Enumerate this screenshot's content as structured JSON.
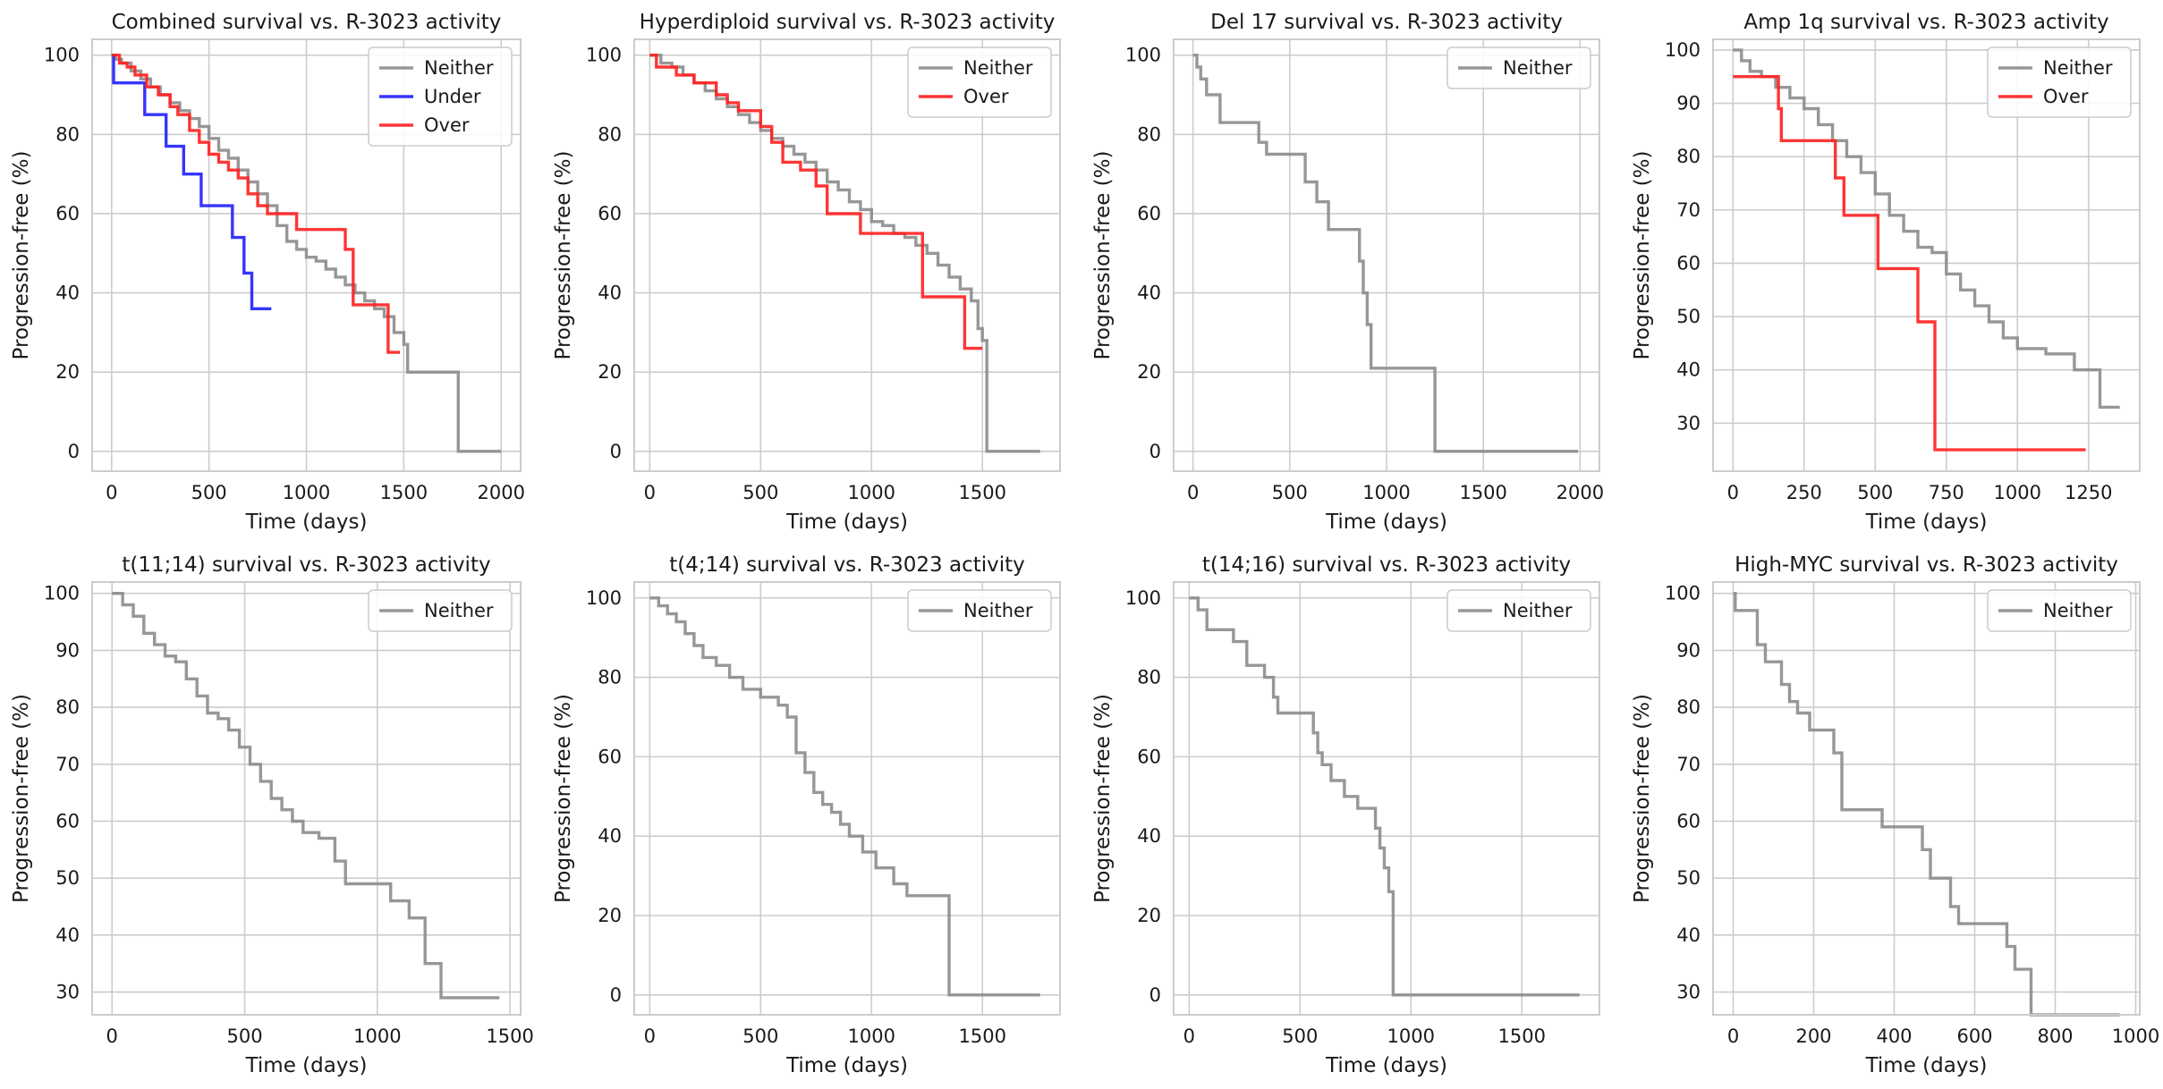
{
  "figure": {
    "facecolor": "#ffffff",
    "ylabel": "Progression-free (%)",
    "xlabel": "Time (days)"
  },
  "colors": {
    "Neither": "#8c8c8c",
    "Under": "#1f1fff",
    "Over": "#ff1f1f"
  },
  "chart_data": [
    {
      "type": "line",
      "title": "Combined survival vs. R-3023 activity",
      "xlabel": "Time (days)",
      "ylabel": "Progression-free (%)",
      "xlim": [
        -100,
        2100
      ],
      "ylim": [
        -5,
        104
      ],
      "xticks": [
        0,
        500,
        1000,
        1500,
        2000
      ],
      "xticklabels": [
        "0",
        "500",
        "1000",
        "1500",
        "2000"
      ],
      "yticks": [
        0,
        20,
        40,
        60,
        80,
        100
      ],
      "yticklabels": [
        "0",
        "20",
        "40",
        "60",
        "80",
        "100"
      ],
      "legend": [
        "Neither",
        "Under",
        "Over"
      ],
      "series": [
        {
          "name": "Neither",
          "x": [
            0,
            20,
            50,
            100,
            150,
            200,
            250,
            300,
            350,
            400,
            450,
            500,
            550,
            600,
            650,
            700,
            750,
            800,
            850,
            900,
            950,
            1000,
            1050,
            1100,
            1150,
            1200,
            1250,
            1300,
            1350,
            1400,
            1450,
            1500,
            1520,
            1760,
            1780,
            2000
          ],
          "y": [
            100,
            99,
            98,
            96,
            94,
            92,
            90,
            88,
            86,
            84,
            82,
            79,
            76,
            74,
            71,
            68,
            65,
            62,
            57,
            53,
            51,
            49,
            48,
            46,
            44,
            42,
            40,
            38,
            36,
            34,
            30,
            27,
            20,
            20,
            0,
            0
          ]
        },
        {
          "name": "Under",
          "x": [
            0,
            10,
            170,
            280,
            370,
            460,
            620,
            680,
            720,
            820
          ],
          "y": [
            100,
            93,
            85,
            77,
            70,
            62,
            54,
            45,
            36,
            36
          ]
        },
        {
          "name": "Over",
          "x": [
            0,
            40,
            80,
            120,
            180,
            240,
            300,
            340,
            400,
            450,
            500,
            550,
            600,
            650,
            700,
            750,
            800,
            950,
            1200,
            1240,
            1420,
            1480
          ],
          "y": [
            100,
            98,
            97,
            95,
            92,
            90,
            87,
            85,
            81,
            78,
            75,
            73,
            71,
            69,
            65,
            62,
            60,
            56,
            51,
            37,
            25,
            25
          ]
        }
      ]
    },
    {
      "type": "line",
      "title": "Hyperdiploid survival vs. R-3023 activity",
      "xlabel": "Time (days)",
      "ylabel": "Progression-free (%)",
      "xlim": [
        -70,
        1850
      ],
      "ylim": [
        -5,
        104
      ],
      "xticks": [
        0,
        500,
        1000,
        1500
      ],
      "xticklabels": [
        "0",
        "500",
        "1000",
        "1500"
      ],
      "yticks": [
        0,
        20,
        40,
        60,
        80,
        100
      ],
      "yticklabels": [
        "0",
        "20",
        "40",
        "60",
        "80",
        "100"
      ],
      "legend": [
        "Neither",
        "Over"
      ],
      "series": [
        {
          "name": "Neither",
          "x": [
            0,
            50,
            100,
            150,
            200,
            250,
            300,
            350,
            400,
            450,
            500,
            550,
            600,
            650,
            700,
            750,
            800,
            850,
            900,
            950,
            1000,
            1050,
            1100,
            1150,
            1200,
            1250,
            1300,
            1350,
            1400,
            1450,
            1480,
            1500,
            1520,
            1760
          ],
          "y": [
            100,
            98,
            97,
            95,
            93,
            91,
            89,
            87,
            85,
            83,
            81,
            79,
            77,
            75,
            73,
            71,
            68,
            66,
            63,
            61,
            58,
            57,
            55,
            54,
            52,
            50,
            47,
            44,
            41,
            38,
            31,
            28,
            0,
            0
          ]
        },
        {
          "name": "Over",
          "x": [
            0,
            30,
            120,
            200,
            300,
            350,
            400,
            500,
            550,
            600,
            680,
            750,
            800,
            950,
            1230,
            1420,
            1500
          ],
          "y": [
            100,
            97,
            95,
            93,
            90,
            88,
            86,
            82,
            78,
            73,
            71,
            67,
            60,
            55,
            39,
            26,
            26
          ]
        }
      ]
    },
    {
      "type": "line",
      "title": "Del 17 survival vs. R-3023 activity",
      "xlabel": "Time (days)",
      "ylabel": "Progression-free (%)",
      "xlim": [
        -100,
        2100
      ],
      "ylim": [
        -5,
        104
      ],
      "xticks": [
        0,
        500,
        1000,
        1500,
        2000
      ],
      "xticklabels": [
        "0",
        "500",
        "1000",
        "1500",
        "2000"
      ],
      "yticks": [
        0,
        20,
        40,
        60,
        80,
        100
      ],
      "yticklabels": [
        "0",
        "20",
        "40",
        "60",
        "80",
        "100"
      ],
      "legend": [
        "Neither"
      ],
      "series": [
        {
          "name": "Neither",
          "x": [
            0,
            20,
            40,
            70,
            140,
            340,
            380,
            580,
            640,
            700,
            860,
            880,
            900,
            920,
            1250,
            1990
          ],
          "y": [
            100,
            97,
            94,
            90,
            83,
            78,
            75,
            68,
            63,
            56,
            48,
            40,
            32,
            21,
            0,
            0
          ]
        }
      ]
    },
    {
      "type": "line",
      "title": "Amp 1q survival vs. R-3023 activity",
      "xlabel": "Time (days)",
      "ylabel": "Progression-free (%)",
      "xlim": [
        -70,
        1430
      ],
      "ylim": [
        21,
        102
      ],
      "xticks": [
        0,
        250,
        500,
        750,
        1000,
        1250
      ],
      "xticklabels": [
        "0",
        "250",
        "500",
        "750",
        "1000",
        "1250"
      ],
      "yticks": [
        30,
        40,
        50,
        60,
        70,
        80,
        90,
        100
      ],
      "yticklabels": [
        "30",
        "40",
        "50",
        "60",
        "70",
        "80",
        "90",
        "100"
      ],
      "legend": [
        "Neither",
        "Over"
      ],
      "series": [
        {
          "name": "Neither",
          "x": [
            0,
            30,
            60,
            100,
            150,
            200,
            250,
            300,
            350,
            400,
            450,
            500,
            550,
            600,
            650,
            700,
            750,
            800,
            850,
            900,
            950,
            1000,
            1100,
            1200,
            1250,
            1290,
            1360
          ],
          "y": [
            100,
            98,
            96,
            95,
            93,
            91,
            89,
            86,
            83,
            80,
            77,
            73,
            69,
            66,
            63,
            62,
            58,
            55,
            52,
            49,
            46,
            44,
            43,
            40,
            40,
            33,
            33
          ]
        },
        {
          "name": "Over",
          "x": [
            0,
            160,
            170,
            360,
            390,
            510,
            650,
            710,
            1240
          ],
          "y": [
            95,
            89,
            83,
            76,
            69,
            59,
            49,
            25,
            25
          ]
        }
      ]
    },
    {
      "type": "line",
      "title": "t(11;14) survival vs. R-3023 activity",
      "xlabel": "Time (days)",
      "ylabel": "Progression-free (%)",
      "xlim": [
        -75,
        1540
      ],
      "ylim": [
        26,
        102
      ],
      "xticks": [
        0,
        500,
        1000,
        1500
      ],
      "xticklabels": [
        "0",
        "500",
        "1000",
        "1500"
      ],
      "yticks": [
        30,
        40,
        50,
        60,
        70,
        80,
        90,
        100
      ],
      "yticklabels": [
        "30",
        "40",
        "50",
        "60",
        "70",
        "80",
        "90",
        "100"
      ],
      "legend": [
        "Neither"
      ],
      "series": [
        {
          "name": "Neither",
          "x": [
            0,
            40,
            80,
            120,
            160,
            200,
            240,
            280,
            320,
            360,
            400,
            440,
            480,
            520,
            560,
            600,
            640,
            680,
            720,
            780,
            840,
            880,
            1050,
            1120,
            1180,
            1240,
            1460
          ],
          "y": [
            100,
            98,
            96,
            93,
            91,
            89,
            88,
            85,
            82,
            79,
            78,
            76,
            73,
            70,
            67,
            64,
            62,
            60,
            58,
            57,
            53,
            49,
            46,
            43,
            35,
            29,
            29
          ]
        }
      ]
    },
    {
      "type": "line",
      "title": "t(4;14) survival vs. R-3023 activity",
      "xlabel": "Time (days)",
      "ylabel": "Progression-free (%)",
      "xlim": [
        -70,
        1850
      ],
      "ylim": [
        -5,
        104
      ],
      "xticks": [
        0,
        500,
        1000,
        1500
      ],
      "xticklabels": [
        "0",
        "500",
        "1000",
        "1500"
      ],
      "yticks": [
        0,
        20,
        40,
        60,
        80,
        100
      ],
      "yticklabels": [
        "0",
        "20",
        "40",
        "60",
        "80",
        "100"
      ],
      "legend": [
        "Neither"
      ],
      "series": [
        {
          "name": "Neither",
          "x": [
            0,
            40,
            80,
            120,
            160,
            200,
            240,
            300,
            360,
            420,
            500,
            540,
            580,
            620,
            660,
            700,
            740,
            780,
            820,
            860,
            900,
            960,
            1020,
            1100,
            1160,
            1350,
            1760
          ],
          "y": [
            100,
            98,
            96,
            94,
            91,
            88,
            85,
            83,
            80,
            77,
            75,
            75,
            73,
            70,
            61,
            56,
            51,
            48,
            46,
            43,
            40,
            36,
            32,
            28,
            25,
            0,
            0
          ]
        }
      ]
    },
    {
      "type": "line",
      "title": "t(14;16) survival vs. R-3023 activity",
      "xlabel": "Time (days)",
      "ylabel": "Progression-free (%)",
      "xlim": [
        -70,
        1850
      ],
      "ylim": [
        -5,
        104
      ],
      "xticks": [
        0,
        500,
        1000,
        1500
      ],
      "xticklabels": [
        "0",
        "500",
        "1000",
        "1500"
      ],
      "yticks": [
        0,
        20,
        40,
        60,
        80,
        100
      ],
      "yticklabels": [
        "0",
        "20",
        "40",
        "60",
        "80",
        "100"
      ],
      "legend": [
        "Neither"
      ],
      "series": [
        {
          "name": "Neither",
          "x": [
            0,
            40,
            80,
            200,
            260,
            340,
            380,
            400,
            560,
            580,
            600,
            640,
            700,
            760,
            840,
            860,
            880,
            900,
            920,
            1760
          ],
          "y": [
            100,
            97,
            92,
            89,
            83,
            80,
            75,
            71,
            66,
            61,
            58,
            54,
            50,
            47,
            42,
            37,
            32,
            26,
            0,
            0
          ]
        }
      ]
    },
    {
      "type": "line",
      "title": "High-MYC survival vs. R-3023 activity",
      "xlabel": "Time (days)",
      "ylabel": "Progression-free (%)",
      "xlim": [
        -50,
        1010
      ],
      "ylim": [
        26,
        102
      ],
      "xticks": [
        0,
        200,
        400,
        600,
        800,
        1000
      ],
      "xticklabels": [
        "0",
        "200",
        "400",
        "600",
        "800",
        "1000"
      ],
      "yticks": [
        30,
        40,
        50,
        60,
        70,
        80,
        90,
        100
      ],
      "yticklabels": [
        "30",
        "40",
        "50",
        "60",
        "70",
        "80",
        "90",
        "100"
      ],
      "legend": [
        "Neither"
      ],
      "series": [
        {
          "name": "Neither",
          "x": [
            0,
            5,
            60,
            80,
            120,
            140,
            160,
            190,
            250,
            270,
            370,
            470,
            490,
            540,
            560,
            680,
            700,
            740,
            960
          ],
          "y": [
            100,
            97,
            91,
            88,
            84,
            81,
            79,
            76,
            72,
            62,
            59,
            55,
            50,
            45,
            42,
            38,
            34,
            26,
            26
          ]
        }
      ]
    }
  ]
}
